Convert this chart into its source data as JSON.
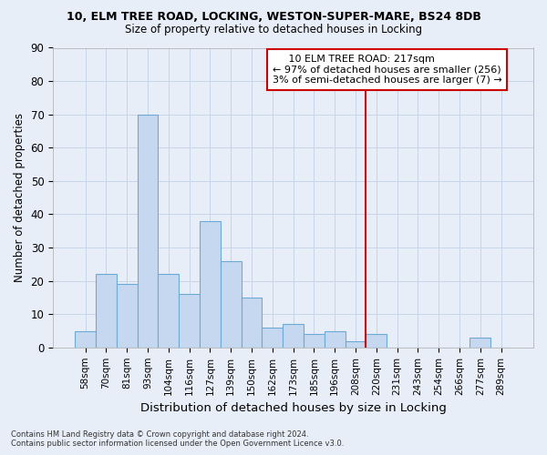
{
  "title_line1": "10, ELM TREE ROAD, LOCKING, WESTON-SUPER-MARE, BS24 8DB",
  "title_line2": "Size of property relative to detached houses in Locking",
  "xlabel": "Distribution of detached houses by size in Locking",
  "ylabel": "Number of detached properties",
  "categories": [
    "58sqm",
    "70sqm",
    "81sqm",
    "93sqm",
    "104sqm",
    "116sqm",
    "127sqm",
    "139sqm",
    "150sqm",
    "162sqm",
    "173sqm",
    "185sqm",
    "196sqm",
    "208sqm",
    "220sqm",
    "231sqm",
    "243sqm",
    "254sqm",
    "266sqm",
    "277sqm",
    "289sqm"
  ],
  "values": [
    5,
    22,
    19,
    70,
    22,
    16,
    38,
    26,
    15,
    6,
    7,
    4,
    5,
    2,
    4,
    0,
    0,
    0,
    0,
    3,
    0
  ],
  "bar_color": "#c5d8f0",
  "bar_edge_color": "#6aaad4",
  "annotation_line_label": "10 ELM TREE ROAD: 217sqm",
  "annotation_text_line2": "← 97% of detached houses are smaller (256)",
  "annotation_text_line3": "3% of semi-detached houses are larger (7) →",
  "annotation_box_color": "#ffffff",
  "annotation_box_edge_color": "#cc0000",
  "vline_color": "#cc0000",
  "grid_color": "#c8d4e8",
  "background_color": "#e8eef8",
  "ylim": [
    0,
    90
  ],
  "yticks": [
    0,
    10,
    20,
    30,
    40,
    50,
    60,
    70,
    80,
    90
  ],
  "footer_line1": "Contains HM Land Registry data © Crown copyright and database right 2024.",
  "footer_line2": "Contains public sector information licensed under the Open Government Licence v3.0."
}
